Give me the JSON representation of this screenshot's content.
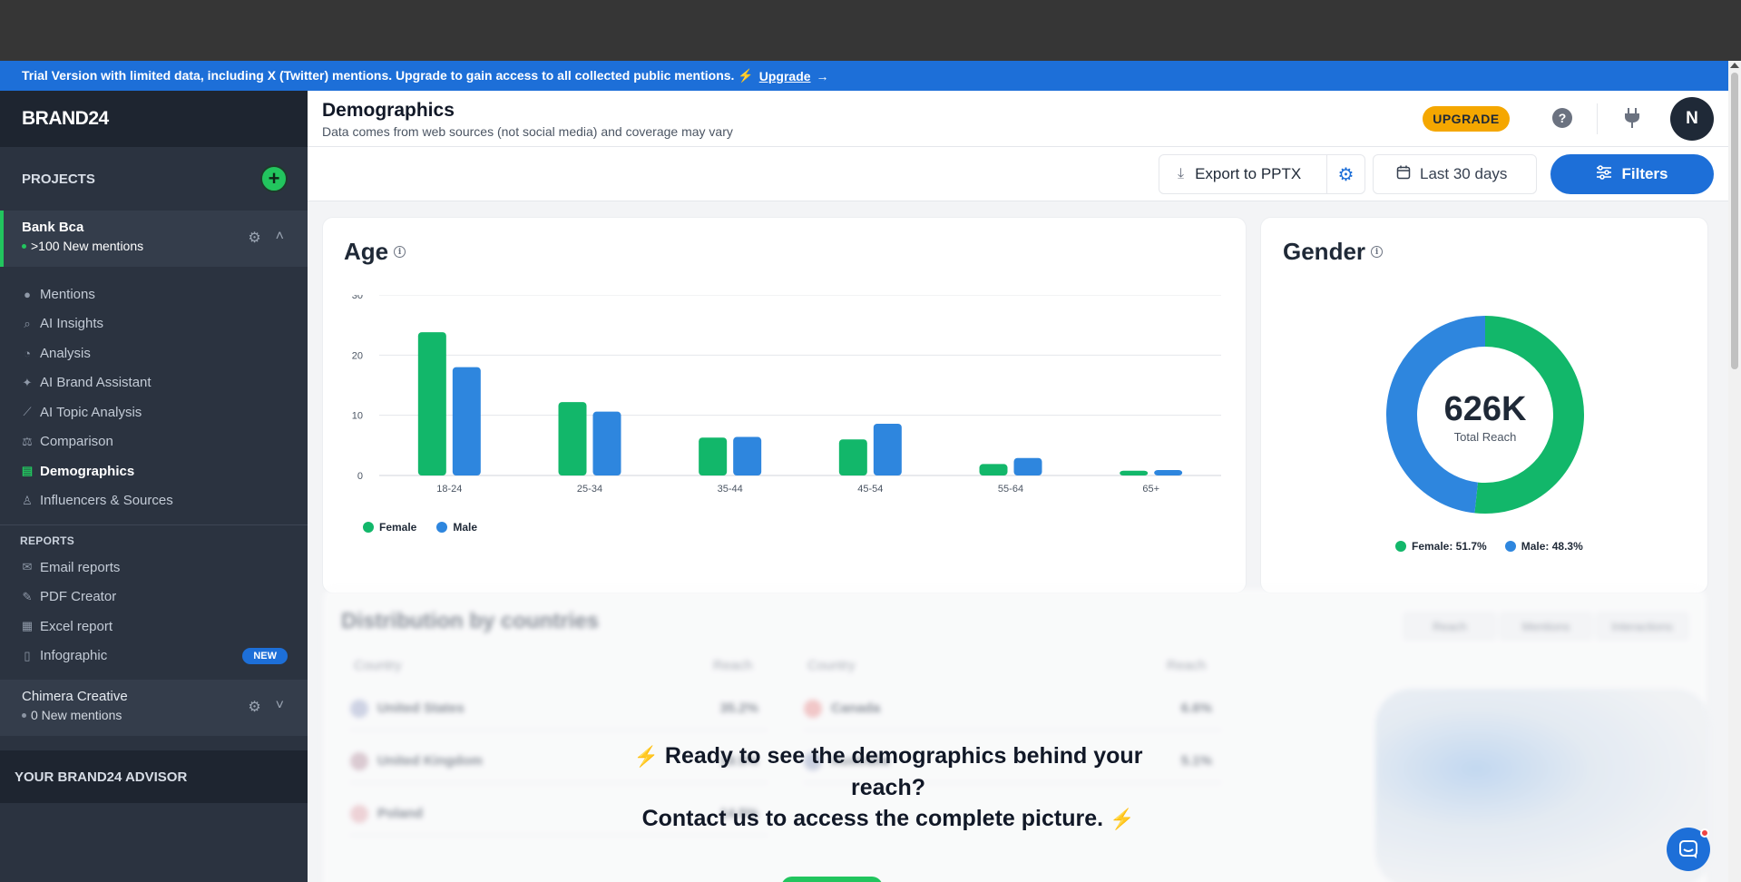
{
  "trial_bar": {
    "message": "Trial Version with limited data, including X (Twitter) mentions. Upgrade to gain access to all collected public mentions. ⚡",
    "upgrade_link": "Upgrade",
    "arrow": "→"
  },
  "sidebar": {
    "brand": "BRAND24",
    "projects_label": "PROJECTS",
    "active_project": {
      "name": "Bank Bca",
      "status": ">100 New mentions"
    },
    "nav_items": [
      {
        "label": "Mentions",
        "icon": "chat-bubble-icon"
      },
      {
        "label": "AI Insights",
        "icon": "magnifier-icon"
      },
      {
        "label": "Analysis",
        "icon": "pie-chart-icon"
      },
      {
        "label": "AI Brand Assistant",
        "icon": "sparkle-icon"
      },
      {
        "label": "AI Topic Analysis",
        "icon": "line-chart-icon"
      },
      {
        "label": "Comparison",
        "icon": "scale-icon"
      },
      {
        "label": "Demographics",
        "icon": "demographics-icon",
        "active": true
      },
      {
        "label": "Influencers & Sources",
        "icon": "person-icon"
      }
    ],
    "reports_label": "REPORTS",
    "report_items": [
      {
        "label": "Email reports",
        "icon": "envelope-icon"
      },
      {
        "label": "PDF Creator",
        "icon": "pdf-edit-icon"
      },
      {
        "label": "Excel report",
        "icon": "spreadsheet-icon"
      },
      {
        "label": "Infographic",
        "icon": "infographic-icon",
        "badge": "NEW"
      }
    ],
    "other_project": {
      "name": "Chimera Creative",
      "status": "0 New mentions"
    },
    "advisor_label": "YOUR BRAND24 ADVISOR"
  },
  "header": {
    "title": "Demographics",
    "subtitle": "Data comes from web sources (not social media) and coverage may vary",
    "upgrade_label": "UPGRADE",
    "avatar_initial": "N"
  },
  "toolbar": {
    "export_label": "Export to PPTX",
    "date_range": "Last 30 days",
    "filters_label": "Filters"
  },
  "age_card": {
    "title": "Age",
    "legend": [
      "Female",
      "Male"
    ]
  },
  "gender_card": {
    "title": "Gender",
    "total_value": "626K",
    "total_label": "Total Reach",
    "legend_female": "Female: 51.7%",
    "legend_male": "Male: 48.3%"
  },
  "chart_data": [
    {
      "type": "bar",
      "title": "Age",
      "categories": [
        "18-24",
        "25-34",
        "35-44",
        "45-54",
        "55-64",
        "65+"
      ],
      "series": [
        {
          "name": "Female",
          "color": "#12b76a",
          "values": [
            23.8,
            12.2,
            6.3,
            6.0,
            1.9,
            0.8
          ]
        },
        {
          "name": "Male",
          "color": "#2e86de",
          "values": [
            18.0,
            10.6,
            6.4,
            8.6,
            2.9,
            0.9
          ]
        }
      ],
      "yticks": [
        0,
        10,
        20,
        30
      ],
      "ylim": [
        0,
        30
      ],
      "legend": "bottom-left",
      "grid": true
    },
    {
      "type": "pie",
      "title": "Gender",
      "categories": [
        "Female",
        "Male"
      ],
      "values": [
        51.7,
        48.3
      ],
      "colors": [
        "#12b76a",
        "#2e86de"
      ],
      "center_value": "626K",
      "center_label": "Total Reach"
    }
  ],
  "blurred_section": {
    "title": "Distribution by countries",
    "tabs": [
      "Reach",
      "Mentions",
      "Interactions"
    ],
    "col_country": "Country",
    "col_reach": "Reach",
    "left_rows": [
      {
        "country": "United States",
        "value": "35.2%"
      },
      {
        "country": "United Kingdom",
        "value": "19.5%"
      },
      {
        "country": "Poland",
        "value": "14.5%"
      }
    ],
    "right_rows": [
      {
        "country": "Canada",
        "value": "6.6%"
      },
      {
        "country": "Australia",
        "value": "5.1%"
      }
    ]
  },
  "overlay": {
    "line1": "Ready to see the demographics behind your reach?",
    "line2": "Contact us to access the complete picture."
  }
}
